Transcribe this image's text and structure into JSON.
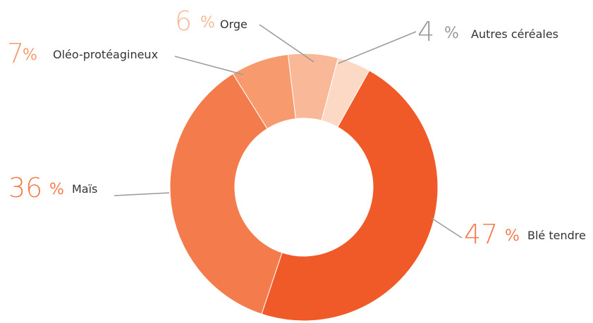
{
  "chart_data": {
    "type": "donut",
    "unit": "%",
    "categories": [
      "Blé tendre",
      "Maïs",
      "Oléo-protéagineux",
      "Orge",
      "Autres céréales"
    ],
    "values": [
      47,
      36,
      7,
      6,
      4
    ],
    "colors": [
      "#f05a28",
      "#f47c4c",
      "#f79b6e",
      "#f9b998",
      "#fcd9c4"
    ]
  }
}
